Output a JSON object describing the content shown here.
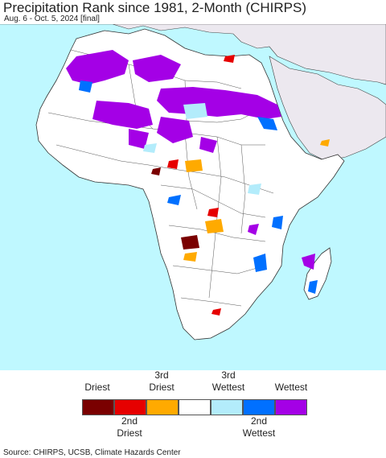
{
  "title": "Precipitation Rank since 1981, 2-Month (CHIRPS)",
  "subtitle": "Aug. 6 - Oct. 5, 2024 [final]",
  "legend": {
    "top_labels": [
      "Driest",
      "3rd\nDriest",
      "3rd\nWettest",
      "Wettest"
    ],
    "bottom_labels": [
      "2nd\nDriest",
      "2nd\nWettest"
    ],
    "categories": [
      {
        "name": "Driest",
        "color": "#7a0000"
      },
      {
        "name": "2nd Driest",
        "color": "#e60000"
      },
      {
        "name": "3rd Driest",
        "color": "#ffaa00"
      },
      {
        "name": "Normal",
        "color": "#ffffff"
      },
      {
        "name": "3rd Wettest",
        "color": "#b3ecfb"
      },
      {
        "name": "2nd Wettest",
        "color": "#0070ff"
      },
      {
        "name": "Wettest",
        "color": "#a400e6"
      }
    ]
  },
  "map": {
    "ocean_color": "#bff8ff",
    "land_color": "#ffffff",
    "outside_region_color": "#ece8ef"
  },
  "source": "Source: CHIRPS, UCSB, Climate Hazards Center"
}
